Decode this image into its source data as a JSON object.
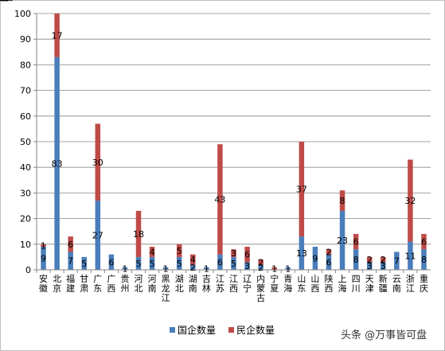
{
  "chart_data": {
    "type": "bar",
    "stacked": true,
    "categories": [
      "安徽",
      "北京",
      "福建",
      "甘肃",
      "广东",
      "广西",
      "贵州",
      "河北",
      "河南",
      "黑龙江",
      "湖北",
      "湖南",
      "吉林",
      "江苏",
      "江西",
      "辽宁",
      "内蒙古",
      "宁夏",
      "青海",
      "山东",
      "山西",
      "陕西",
      "上海",
      "四川",
      "天津",
      "新疆",
      "云南",
      "浙江",
      "重庆"
    ],
    "series": [
      {
        "name": "国企数量",
        "color": "#4a7ebb",
        "values": [
          9,
          83,
          7,
          5,
          27,
          6,
          1,
          5,
          5,
          1,
          5,
          2,
          1,
          6,
          5,
          3,
          2,
          0,
          1,
          13,
          9,
          6,
          23,
          8,
          3,
          3,
          7,
          11,
          8
        ]
      },
      {
        "name": "民企数量",
        "color": "#be4b48",
        "values": [
          1,
          17,
          6,
          0,
          30,
          0,
          0,
          18,
          4,
          0,
          5,
          4,
          0,
          43,
          3,
          6,
          2,
          1,
          0,
          37,
          0,
          2,
          8,
          6,
          2,
          2,
          0,
          32,
          6
        ]
      }
    ],
    "ylim": [
      0,
      100
    ],
    "yticks": [
      0,
      10,
      20,
      30,
      40,
      50,
      60,
      70,
      80,
      90,
      100
    ],
    "grid": true,
    "legend": "bottom",
    "title": "",
    "xlabel": "",
    "ylabel": ""
  },
  "watermark": {
    "text": "头条 @万事皆可盘"
  }
}
